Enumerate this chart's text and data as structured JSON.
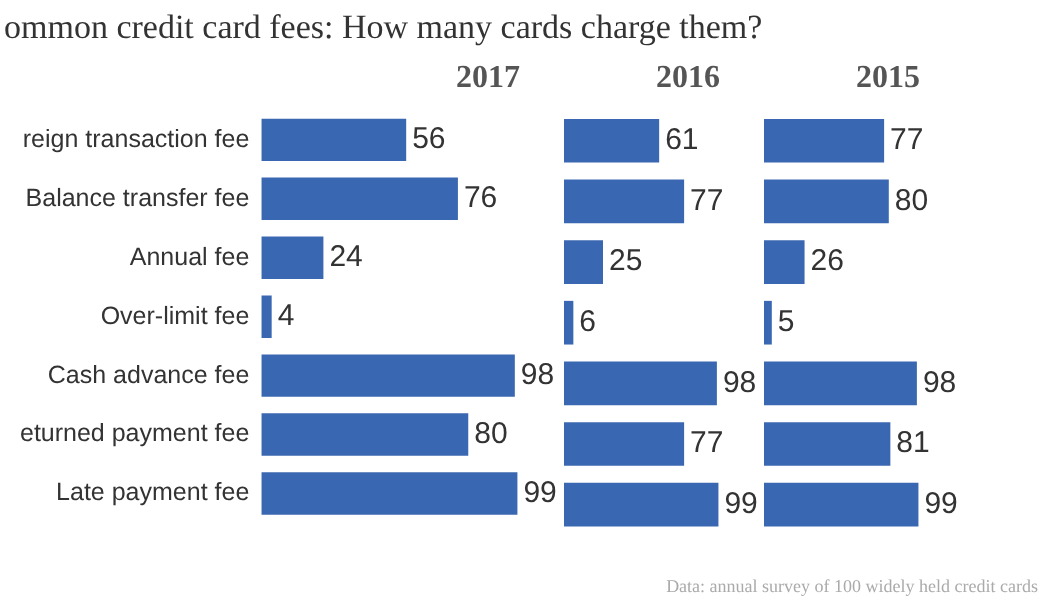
{
  "chart_data": [
    {
      "type": "bar",
      "orientation": "horizontal",
      "title": "ommon credit card fees: How many cards charge them?",
      "subtitle": "2017",
      "categories": [
        "reign transaction fee",
        "Balance transfer fee",
        "Annual fee",
        "Over-limit fee",
        "Cash advance fee",
        "eturned payment fee",
        "Late payment fee"
      ],
      "values": [
        56,
        76,
        24,
        4,
        98,
        80,
        99
      ],
      "color": "#3a67b1",
      "data_labels": true,
      "grid": false,
      "legend": false,
      "tick_labels": "y"
    },
    {
      "type": "bar",
      "orientation": "horizontal",
      "subtitle": "2016",
      "categories": [
        null,
        null,
        null,
        null,
        null,
        null,
        null
      ],
      "values": [
        61,
        77,
        25,
        6,
        98,
        77,
        99
      ],
      "color": "#3a67b1",
      "data_labels": true,
      "grid": false,
      "legend": false,
      "tick_labels": false
    },
    {
      "type": "bar",
      "orientation": "horizontal",
      "subtitle": "2015",
      "categories": [
        null,
        null,
        null,
        null,
        null,
        null,
        null
      ],
      "values": [
        77,
        80,
        26,
        5,
        98,
        81,
        99
      ],
      "color": "#3a67b1",
      "data_labels": true,
      "grid": false,
      "legend": false,
      "tick_labels": false,
      "annotations": [
        "Data: annual survey of 100 widely held credit cards"
      ]
    }
  ]
}
